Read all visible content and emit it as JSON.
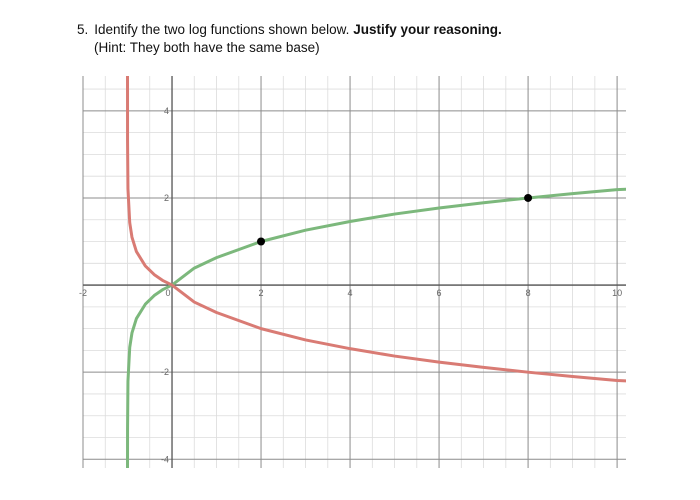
{
  "question": {
    "number": "5.",
    "prompt": "Identify the two log functions shown below.",
    "emphasis": "Justify your reasoning.",
    "hint": "(Hint:  They both have the same base)"
  },
  "chart_data": {
    "type": "line",
    "title": "",
    "xlabel": "",
    "ylabel": "",
    "xlim": [
      -2,
      10.2
    ],
    "ylim": [
      -4.2,
      4.8
    ],
    "grid": true,
    "minor_grid_step": 0.5,
    "major_grid_step": 2,
    "x_tick_labels": [
      "-2",
      "0",
      "2",
      "4",
      "6",
      "8",
      "10"
    ],
    "y_tick_labels": [
      "4",
      "2",
      "-2",
      "-4"
    ],
    "series": [
      {
        "color": "#7cb87c",
        "description_of_curve": "green",
        "x": [
          -1.0,
          -0.999,
          -0.99,
          -0.95,
          -0.9,
          -0.8,
          -0.6,
          -0.4,
          -0.2,
          0,
          0.5,
          1,
          2,
          3,
          4,
          5,
          6,
          7,
          8,
          9,
          10,
          10.2
        ],
        "y": [
          -4.2,
          -3.32,
          -2.21,
          -1.43,
          -1.1,
          -0.77,
          -0.44,
          -0.24,
          -0.1,
          0,
          0.39,
          0.63,
          1.0,
          1.26,
          1.46,
          1.63,
          1.77,
          1.89,
          2.0,
          2.1,
          2.19,
          2.2
        ]
      },
      {
        "color": "#d97b74",
        "description_of_curve": "red",
        "x": [
          -1.0,
          -0.999,
          -0.99,
          -0.95,
          -0.9,
          -0.8,
          -0.6,
          -0.4,
          -0.2,
          0,
          0.5,
          1,
          2,
          3,
          4,
          5,
          6,
          7,
          8,
          9,
          10,
          10.2
        ],
        "y": [
          4.8,
          3.32,
          2.21,
          1.43,
          1.1,
          0.77,
          0.44,
          0.24,
          0.1,
          0,
          -0.39,
          -0.63,
          -1.0,
          -1.26,
          -1.46,
          -1.63,
          -1.77,
          -1.89,
          -2.0,
          -2.1,
          -2.19,
          -2.2
        ]
      }
    ],
    "points": [
      {
        "x": 2,
        "y": 1,
        "color": "#000000"
      },
      {
        "x": 8,
        "y": 2,
        "color": "#000000"
      }
    ]
  }
}
